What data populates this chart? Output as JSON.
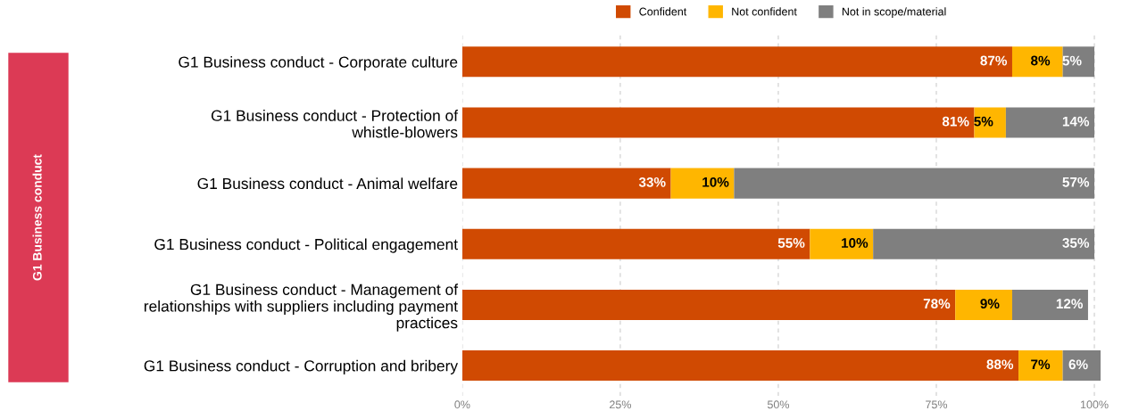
{
  "chart_data": {
    "type": "bar",
    "orientation": "horizontal",
    "stacked": true,
    "categories": [
      "G1 Business conduct - Corporate culture",
      "G1 Business conduct - Protection of\nwhistle-blowers",
      "G1 Business conduct - Animal welfare",
      "G1 Business conduct - Political engagement",
      "G1 Business conduct - Management of\nrelationships with suppliers including payment\npractices",
      "G1 Business conduct - Corruption and bribery"
    ],
    "series": [
      {
        "name": "Confident",
        "color": "#d04a02",
        "values": [
          87,
          81,
          33,
          55,
          78,
          88
        ],
        "value_labels": [
          "87%",
          "81%",
          "33%",
          "55%",
          "78%",
          "88%"
        ]
      },
      {
        "name": "Not confident",
        "color": "#ffb600",
        "values": [
          8,
          5,
          10,
          10,
          9,
          7
        ],
        "value_labels": [
          "8%",
          "5%",
          "10%",
          "10%",
          "9%",
          "7%"
        ]
      },
      {
        "name": "Not in scope/material",
        "color": "#7f7f7f",
        "values": [
          5,
          14,
          57,
          35,
          12,
          6
        ],
        "value_labels": [
          "5%",
          "14%",
          "57%",
          "35%",
          "12%",
          "6%"
        ]
      }
    ],
    "xlim": [
      0,
      101
    ],
    "xticks": [
      {
        "value": 0,
        "label": "0%"
      },
      {
        "value": 25,
        "label": "25%"
      },
      {
        "value": 50,
        "label": "50%"
      },
      {
        "value": 75,
        "label": "75%"
      },
      {
        "value": 100,
        "label": "100%"
      }
    ],
    "grid": "x",
    "legend": "top",
    "annotations": [
      "G1 Business conduct"
    ]
  }
}
